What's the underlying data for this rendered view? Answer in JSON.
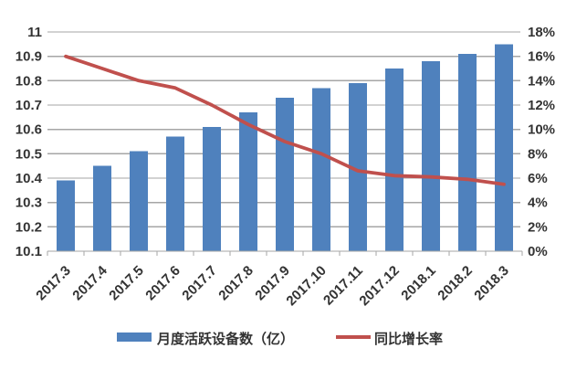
{
  "chart_data": {
    "type": "combo",
    "title": "",
    "categories": [
      "2017.3",
      "2017.4",
      "2017.5",
      "2017.6",
      "2017.7",
      "2017.8",
      "2017.9",
      "2017.10",
      "2017.11",
      "2017.12",
      "2018.1",
      "2018.2",
      "2018.3"
    ],
    "series": [
      {
        "name": "月度活跃设备数（亿）",
        "type": "bar",
        "axis": "left",
        "color": "#4F81BD",
        "values": [
          10.39,
          10.45,
          10.51,
          10.57,
          10.61,
          10.67,
          10.73,
          10.77,
          10.79,
          10.85,
          10.88,
          10.91,
          10.95
        ]
      },
      {
        "name": "同比增长率",
        "type": "line",
        "axis": "right",
        "color": "#C0504D",
        "values": [
          16.0,
          15.0,
          14.0,
          13.4,
          12.0,
          10.4,
          9.0,
          8.0,
          6.6,
          6.2,
          6.1,
          5.9,
          5.5
        ]
      }
    ],
    "left_axis": {
      "min": 10.1,
      "max": 11.0,
      "step": 0.1,
      "tick_values": [
        11,
        10.9,
        10.8,
        10.7,
        10.6,
        10.5,
        10.4,
        10.3,
        10.2,
        10.1
      ],
      "tick_labels": [
        "11",
        "10.9",
        "10.8",
        "10.7",
        "10.6",
        "10.5",
        "10.4",
        "10.3",
        "10.2",
        "10.1"
      ]
    },
    "right_axis": {
      "min": 0,
      "max": 18,
      "step": 2,
      "tick_values": [
        18,
        16,
        14,
        12,
        10,
        8,
        6,
        4,
        2,
        0
      ],
      "tick_labels": [
        "18%",
        "16%",
        "14%",
        "12%",
        "10%",
        "8%",
        "6%",
        "4%",
        "2%",
        "0%"
      ]
    },
    "grid": true,
    "legend_position": "bottom",
    "legend": [
      {
        "label": "月度活跃设备数（亿）",
        "swatch": "bar",
        "color": "#4F81BD"
      },
      {
        "label": "同比增长率",
        "swatch": "line",
        "color": "#C0504D"
      }
    ]
  },
  "colors": {
    "bar": "#4F81BD",
    "line": "#C0504D",
    "grid": "#A6A6A6",
    "axis_text": "#333333",
    "background": "#FFFFFF"
  }
}
